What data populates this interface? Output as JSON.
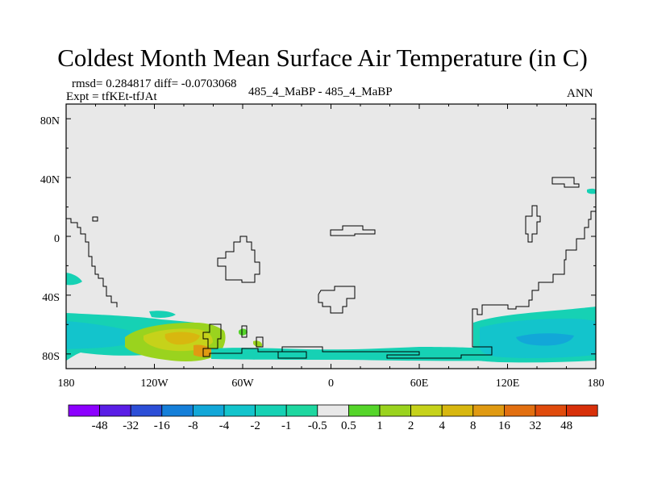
{
  "chart_data": {
    "type": "heatmap",
    "title": "Coldest Month Mean Surface Air Temperature (in C)",
    "subtitle_stats": "rmsd= 0.284817 diff= -0.0703068",
    "subtitle_expt": "Expt = tfKEt-tfJAt",
    "subtitle_center": "485_4_MaBP - 485_4_MaBP",
    "subtitle_right": "ANN",
    "x_ticks": [
      "180",
      "120W",
      "60W",
      "0",
      "60E",
      "120E",
      "180"
    ],
    "y_ticks": [
      "80N",
      "40N",
      "0",
      "40S",
      "80S"
    ],
    "y_tick_values": [
      80,
      40,
      0,
      -40,
      -80
    ],
    "xlim": [
      -180,
      180
    ],
    "ylim": [
      -90,
      90
    ],
    "colorbar": {
      "labels": [
        "-48",
        "-32",
        "-16",
        "-8",
        "-4",
        "-2",
        "-1",
        "-0.5",
        "0.5",
        "1",
        "2",
        "4",
        "8",
        "16",
        "32",
        "48"
      ],
      "colors": [
        "#8c00ff",
        "#5a1ee6",
        "#2c4ed7",
        "#157fd9",
        "#12a7d8",
        "#13c4cc",
        "#16d1b4",
        "#1ed7a0",
        "#e8e8e8",
        "#55d52a",
        "#9ad31e",
        "#c6d21a",
        "#d8b70f",
        "#e09a12",
        "#e26f10",
        "#e04b0c",
        "#d8300a"
      ]
    },
    "background_color": "#e8e8e8"
  }
}
